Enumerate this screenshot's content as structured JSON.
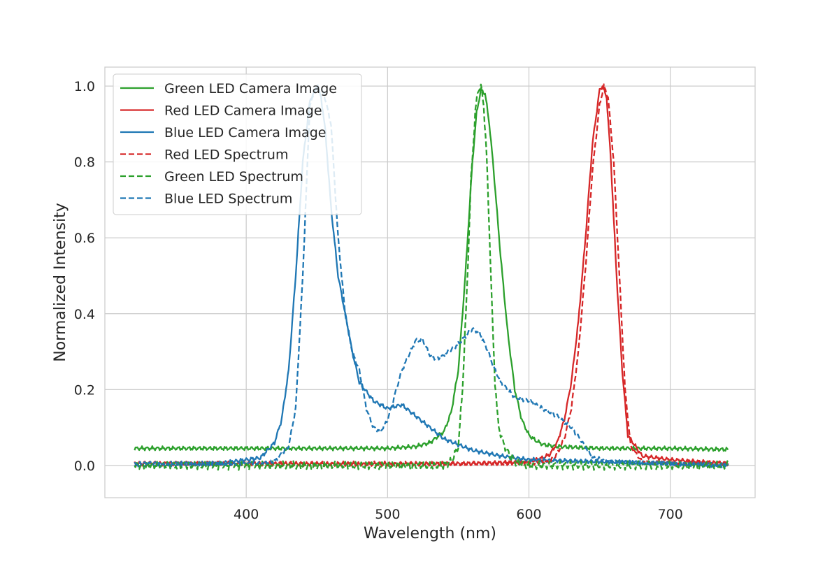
{
  "chart_data": {
    "type": "line",
    "title": "",
    "xlabel": "Wavelength (nm)",
    "ylabel": "Normalized Intensity",
    "xlim": [
      300,
      760
    ],
    "ylim": [
      -0.085,
      1.05
    ],
    "xticks": [
      400,
      500,
      600,
      700
    ],
    "yticks": [
      0.0,
      0.2,
      0.4,
      0.6,
      0.8,
      1.0
    ],
    "xtick_labels": [
      "400",
      "500",
      "600",
      "700"
    ],
    "ytick_labels": [
      "0.0",
      "0.2",
      "0.4",
      "0.6",
      "0.8",
      "1.0"
    ],
    "grid": true,
    "legend_position": "top-left",
    "series": [
      {
        "name": "Green LED Camera Image",
        "color": "#2ca02c",
        "style": "solid",
        "x": [
          321,
          350,
          380,
          400,
          450,
          500,
          520,
          530,
          540,
          545,
          550,
          555,
          560,
          563,
          566,
          569,
          572,
          575,
          580,
          585,
          590,
          595,
          600,
          605,
          610,
          620,
          650,
          700,
          741
        ],
        "y": [
          0.045,
          0.045,
          0.045,
          0.045,
          0.045,
          0.045,
          0.05,
          0.06,
          0.09,
          0.14,
          0.25,
          0.5,
          0.8,
          0.93,
          0.99,
          0.98,
          0.9,
          0.78,
          0.55,
          0.35,
          0.2,
          0.12,
          0.08,
          0.065,
          0.055,
          0.05,
          0.045,
          0.045,
          0.042
        ]
      },
      {
        "name": "Red LED Camera Image",
        "color": "#d62728",
        "style": "solid",
        "x": [
          321,
          400,
          500,
          560,
          600,
          610,
          615,
          620,
          625,
          630,
          635,
          640,
          645,
          650,
          652,
          655,
          658,
          662,
          666,
          670,
          680,
          690,
          700,
          720,
          741
        ],
        "y": [
          0.005,
          0.005,
          0.003,
          0.005,
          0.01,
          0.02,
          0.03,
          0.06,
          0.12,
          0.22,
          0.38,
          0.6,
          0.85,
          0.99,
          1.0,
          0.97,
          0.8,
          0.5,
          0.25,
          0.08,
          0.025,
          0.02,
          0.015,
          0.01,
          0.005
        ]
      },
      {
        "name": "Blue LED Camera Image",
        "color": "#1f77b4",
        "style": "solid",
        "x": [
          321,
          380,
          410,
          420,
          425,
          430,
          435,
          440,
          445,
          450,
          453,
          456,
          460,
          465,
          470,
          475,
          480,
          490,
          500,
          510,
          520,
          530,
          540,
          560,
          580,
          600,
          650,
          700,
          741
        ],
        "y": [
          0.0,
          0.005,
          0.02,
          0.06,
          0.12,
          0.25,
          0.5,
          0.8,
          0.96,
          1.0,
          0.97,
          0.88,
          0.68,
          0.5,
          0.4,
          0.3,
          0.22,
          0.17,
          0.15,
          0.16,
          0.13,
          0.1,
          0.07,
          0.04,
          0.025,
          0.015,
          0.01,
          0.005,
          0.0
        ]
      },
      {
        "name": "Red LED Spectrum",
        "color": "#d62728",
        "style": "dashed",
        "x": [
          321,
          400,
          500,
          560,
          600,
          615,
          620,
          625,
          630,
          635,
          640,
          645,
          650,
          653,
          656,
          660,
          664,
          668,
          672,
          680,
          700,
          720,
          741
        ],
        "y": [
          0.005,
          0.005,
          0.005,
          0.005,
          0.005,
          0.01,
          0.03,
          0.07,
          0.15,
          0.3,
          0.52,
          0.78,
          0.95,
          1.0,
          0.97,
          0.8,
          0.5,
          0.2,
          0.05,
          0.01,
          0.005,
          0.005,
          0.005
        ]
      },
      {
        "name": "Green LED Spectrum",
        "color": "#2ca02c",
        "style": "dashed",
        "x": [
          321,
          400,
          500,
          540,
          545,
          550,
          553,
          556,
          559,
          562,
          564,
          566,
          568,
          570,
          572,
          574,
          576,
          578,
          580,
          582,
          585,
          590,
          600,
          650,
          700,
          741
        ],
        "y": [
          0.0,
          0.0,
          0.0,
          0.0,
          0.01,
          0.05,
          0.2,
          0.45,
          0.75,
          0.93,
          0.99,
          1.0,
          0.95,
          0.82,
          0.62,
          0.4,
          0.22,
          0.12,
          0.08,
          0.06,
          0.035,
          0.01,
          0.0,
          0.0,
          0.0,
          0.0
        ]
      },
      {
        "name": "Blue LED Spectrum",
        "color": "#1f77b4",
        "style": "dashed",
        "x": [
          321,
          400,
          420,
          430,
          435,
          440,
          445,
          450,
          455,
          460,
          465,
          470,
          475,
          480,
          485,
          490,
          495,
          500,
          510,
          520,
          525,
          530,
          535,
          540,
          550,
          560,
          565,
          570,
          575,
          580,
          590,
          600,
          610,
          620,
          630,
          640,
          645,
          660,
          700,
          741
        ],
        "y": [
          0.005,
          0.005,
          0.01,
          0.05,
          0.15,
          0.5,
          0.95,
          1.0,
          0.98,
          0.9,
          0.6,
          0.4,
          0.3,
          0.25,
          0.15,
          0.1,
          0.09,
          0.12,
          0.25,
          0.33,
          0.33,
          0.29,
          0.28,
          0.29,
          0.32,
          0.36,
          0.35,
          0.31,
          0.26,
          0.22,
          0.18,
          0.17,
          0.15,
          0.13,
          0.1,
          0.05,
          0.02,
          0.01,
          0.005,
          0.0
        ]
      }
    ]
  }
}
